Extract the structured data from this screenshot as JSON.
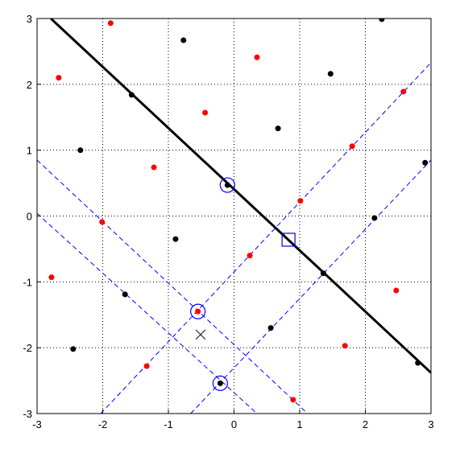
{
  "chart_data": {
    "type": "scatter",
    "xlim": [
      -3,
      3
    ],
    "ylim": [
      -3,
      3
    ],
    "xticks": [
      -3,
      -2,
      -1,
      0,
      1,
      2,
      3
    ],
    "yticks": [
      -3,
      -2,
      -1,
      0,
      1,
      2,
      3
    ],
    "grid": true,
    "series": [
      {
        "marker": "dot",
        "color": "#ff0000",
        "x": [
          -1.88,
          -2.67,
          0.35,
          -0.44,
          -1.22,
          -2.01,
          -2.78,
          1.8,
          2.58,
          1.01,
          0.24,
          2.47,
          -0.55,
          1.69,
          -1.33,
          0.9
        ],
        "y": [
          2.93,
          2.1,
          2.41,
          1.57,
          0.74,
          -0.09,
          -0.93,
          1.06,
          1.89,
          0.23,
          -0.6,
          -1.13,
          -1.45,
          -1.97,
          -2.28,
          -2.79
        ]
      },
      {
        "marker": "dot",
        "color": "#000000",
        "x": [
          -0.77,
          1.47,
          2.25,
          0.67,
          -2.34,
          -1.56,
          -0.1,
          2.91,
          2.14,
          -0.89,
          1.36,
          -1.66,
          0.56,
          -2.45,
          -0.21,
          2.8
        ],
        "y": [
          2.67,
          2.16,
          2.99,
          1.33,
          1.0,
          1.84,
          0.47,
          0.81,
          -0.03,
          -0.35,
          -0.87,
          -1.19,
          -1.7,
          -2.02,
          -2.54,
          -2.23
        ]
      },
      {
        "marker": "circle",
        "color": "#0000ff",
        "x": [
          -0.1,
          -0.55,
          -0.21
        ],
        "y": [
          0.47,
          -1.45,
          -2.54
        ]
      },
      {
        "marker": "square",
        "color": "#0000ff",
        "x": [
          0.83
        ],
        "y": [
          -0.36
        ]
      },
      {
        "marker": "x",
        "color": "#000000",
        "x": [
          -0.51
        ],
        "y": [
          -1.8
        ]
      }
    ],
    "lines": [
      {
        "style": "solid",
        "color": "#000000",
        "x": [
          -2.79,
          3
        ],
        "y": [
          3,
          -2.38
        ]
      },
      {
        "style": "dashed",
        "color": "#0000ff",
        "x": [
          -3,
          1.12
        ],
        "y": [
          0.85,
          -3
        ]
      },
      {
        "style": "dashed",
        "color": "#0000ff",
        "x": [
          -3,
          0.35
        ],
        "y": [
          0.04,
          -3
        ]
      },
      {
        "style": "dashed",
        "color": "#0000ff",
        "x": [
          -2.03,
          3
        ],
        "y": [
          -3,
          2.33
        ]
      },
      {
        "style": "dashed",
        "color": "#0000ff",
        "x": [
          -0.66,
          3
        ],
        "y": [
          -3,
          0.85
        ]
      }
    ]
  }
}
